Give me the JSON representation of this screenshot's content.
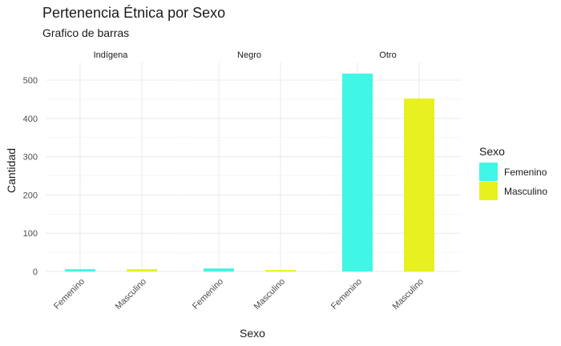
{
  "chart_data": {
    "type": "bar",
    "title": "Pertenencia Étnica por Sexo",
    "subtitle": "Grafico de barras",
    "xlabel": "Sexo",
    "ylabel": "Cantidad",
    "ylim": [
      0,
      540
    ],
    "y_ticks": [
      0,
      100,
      200,
      300,
      400,
      500
    ],
    "grid": true,
    "legend": {
      "title": "Sexo",
      "placement": "right",
      "entries": [
        {
          "label": "Femenino",
          "color": "#40F6E5"
        },
        {
          "label": "Masculino",
          "color": "#E6F11F"
        }
      ]
    },
    "categories": [
      "Femenino",
      "Masculino"
    ],
    "facets": [
      {
        "label": "Indígena",
        "values": [
          6,
          6
        ]
      },
      {
        "label": "Negro",
        "values": [
          8,
          4
        ]
      },
      {
        "label": "Otro",
        "values": [
          517,
          452
        ]
      }
    ]
  }
}
